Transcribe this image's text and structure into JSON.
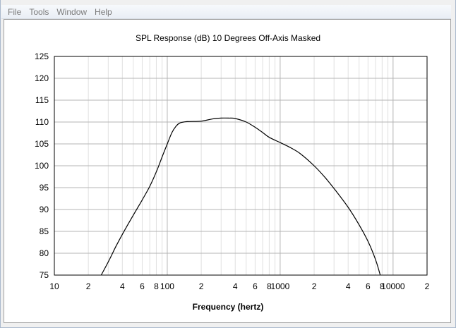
{
  "menu": {
    "items": [
      {
        "label": "File"
      },
      {
        "label": "Tools"
      },
      {
        "label": "Window"
      },
      {
        "label": "Help"
      }
    ]
  },
  "chart_data": {
    "type": "line",
    "title": "SPL Response (dB)   10 Degrees Off-Axis   Masked",
    "xlabel": "Frequency (hertz)",
    "ylabel": "",
    "xscale": "log",
    "xlim": [
      10,
      20000
    ],
    "ylim": [
      75,
      125
    ],
    "grid": true,
    "x_ticks": [
      {
        "value": 10,
        "label": "10"
      },
      {
        "value": 20,
        "label": "2"
      },
      {
        "value": 40,
        "label": "4"
      },
      {
        "value": 60,
        "label": "6"
      },
      {
        "value": 80,
        "label": "8"
      },
      {
        "value": 100,
        "label": "100"
      },
      {
        "value": 200,
        "label": "2"
      },
      {
        "value": 400,
        "label": "4"
      },
      {
        "value": 600,
        "label": "6"
      },
      {
        "value": 800,
        "label": "8"
      },
      {
        "value": 1000,
        "label": "1000"
      },
      {
        "value": 2000,
        "label": "2"
      },
      {
        "value": 4000,
        "label": "4"
      },
      {
        "value": 6000,
        "label": "6"
      },
      {
        "value": 8000,
        "label": "8"
      },
      {
        "value": 10000,
        "label": "10000"
      },
      {
        "value": 20000,
        "label": "2"
      }
    ],
    "y_ticks": [
      75,
      80,
      85,
      90,
      95,
      100,
      105,
      110,
      115,
      120,
      125
    ],
    "series": [
      {
        "color": "#000000",
        "points": [
          [
            26,
            75
          ],
          [
            30,
            78
          ],
          [
            35,
            81.5
          ],
          [
            40,
            84.3
          ],
          [
            50,
            88.7
          ],
          [
            60,
            92.2
          ],
          [
            70,
            95.3
          ],
          [
            80,
            98.6
          ],
          [
            90,
            102
          ],
          [
            100,
            105
          ],
          [
            110,
            107.6
          ],
          [
            120,
            109.1
          ],
          [
            130,
            109.8
          ],
          [
            150,
            110.1
          ],
          [
            200,
            110.2
          ],
          [
            250,
            110.7
          ],
          [
            300,
            110.9
          ],
          [
            350,
            110.9
          ],
          [
            400,
            110.8
          ],
          [
            500,
            110
          ],
          [
            600,
            108.8
          ],
          [
            700,
            107.6
          ],
          [
            800,
            106.5
          ],
          [
            1000,
            105.3
          ],
          [
            1200,
            104.3
          ],
          [
            1500,
            102.8
          ],
          [
            2000,
            100
          ],
          [
            2500,
            97.3
          ],
          [
            3000,
            94.8
          ],
          [
            4000,
            90.5
          ],
          [
            5000,
            86.5
          ],
          [
            6000,
            82.7
          ],
          [
            7000,
            78.5
          ],
          [
            7700,
            75
          ]
        ]
      }
    ]
  }
}
